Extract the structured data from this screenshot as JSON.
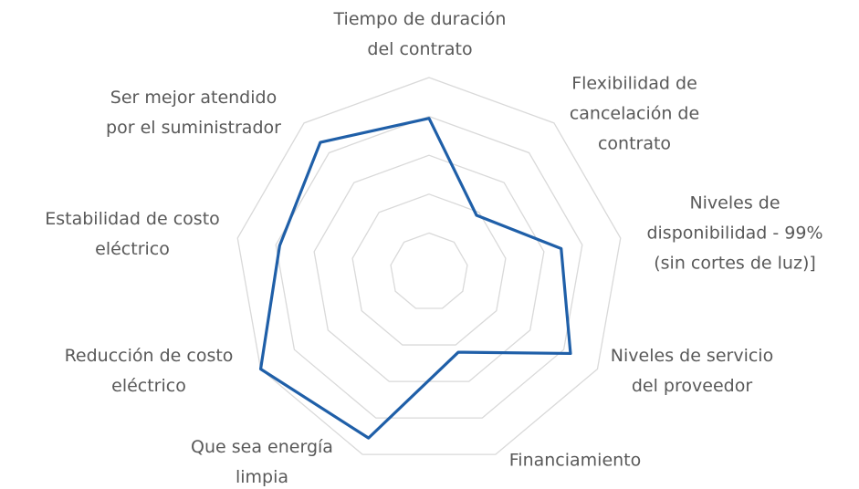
{
  "chart_data": {
    "type": "radar",
    "categories": [
      "Tiempo de duración\ndel contrato",
      "Flexibilidad de\ncancelación de\ncontrato",
      "Niveles de\ndisponibilidad - 99%\n(sin cortes de luz)]",
      "Niveles de servicio\ndel proveedor",
      "Financiamiento",
      "Que sea energía\nlimpia",
      "Reducción de costo\neléctrico",
      "Estabilidad de costo\neléctrico",
      "Ser mejor atendido\npor el suministrador"
    ],
    "series": [
      {
        "color": "#1f5fa8",
        "values": [
          3.95,
          1.9,
          3.45,
          4.2,
          2.2,
          4.55,
          5.0,
          3.9,
          4.35
        ]
      }
    ],
    "rlim": [
      0,
      5
    ],
    "rticks": [
      1,
      2,
      3,
      4,
      5
    ],
    "grid": true,
    "grid_color": "#d9d9d9"
  }
}
